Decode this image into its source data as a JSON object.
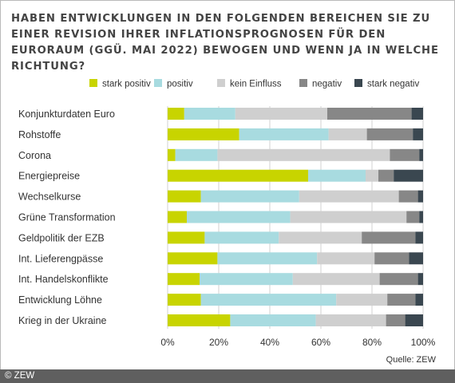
{
  "title": "HABEN ENTWICKLUNGEN IN DEN FOLGENDEN BEREICHEN SIE ZU EINER REVISION IHRER INFLATIONSPROGNOSEN FÜR DEN EURORAUM (GGÜ. MAI 2022) BEWOGEN UND WENN JA IN WELCHE RICHTUNG?",
  "source": "Quelle: ZEW",
  "copyright": "© ZEW",
  "chart_data": {
    "type": "bar",
    "orientation": "horizontal",
    "stacked": "percent",
    "categories": [
      "Konjunkturdaten Euro",
      "Rohstoffe",
      "Corona",
      "Energiepreise",
      "Wechselkurse",
      "Grüne Transformation",
      "Geldpolitik der EZB",
      "Int. Lieferengpässe",
      "Int. Handelskonflikte",
      "Entwicklung Löhne",
      "Krieg in der Ukraine"
    ],
    "series": [
      {
        "name": "stark positiv",
        "color": "#c8d400",
        "values": [
          6.5,
          28,
          3,
          55,
          13,
          7.5,
          14.5,
          19.5,
          12.5,
          13,
          24.5
        ]
      },
      {
        "name": "positiv",
        "color": "#a8dbe0",
        "values": [
          20,
          35,
          16.5,
          22.5,
          38.5,
          40.5,
          29,
          39,
          36.5,
          53,
          33.5
        ]
      },
      {
        "name": "kein Einfluss",
        "color": "#cfcfcf",
        "values": [
          36,
          15,
          67.5,
          5,
          39,
          45.5,
          32.5,
          22.5,
          34,
          20,
          27.5
        ]
      },
      {
        "name": "negativ",
        "color": "#878787",
        "values": [
          33,
          18,
          11.5,
          6,
          7.5,
          5,
          21,
          13.5,
          15,
          11,
          7.5
        ]
      },
      {
        "name": "stark negativ",
        "color": "#3a4750",
        "values": [
          4.5,
          4,
          1.5,
          11.5,
          2,
          1.5,
          3,
          5.5,
          2,
          3,
          7
        ]
      }
    ],
    "xlim": [
      0,
      100
    ],
    "xticks": [
      "0%",
      "20%",
      "40%",
      "60%",
      "80%",
      "100%"
    ],
    "legend_position": "top"
  }
}
